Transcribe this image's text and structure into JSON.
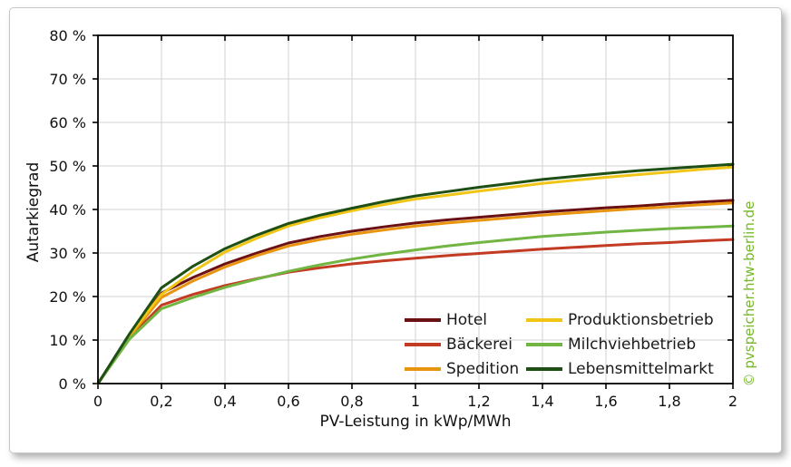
{
  "chart_data": {
    "type": "line",
    "title": "",
    "xlabel": "PV-Leistung in kWp/MWh",
    "ylabel": "Autarkiegrad",
    "xlim": [
      0,
      2
    ],
    "ylim": [
      0,
      80
    ],
    "grid": true,
    "legend_position": "inside-bottom-right-two-columns",
    "x_ticks": [
      0,
      0.2,
      0.4,
      0.6,
      0.8,
      1,
      1.2,
      1.4,
      1.6,
      1.8,
      2
    ],
    "x_tick_labels": [
      "0",
      "0,2",
      "0,4",
      "0,6",
      "0,8",
      "1",
      "1,2",
      "1,4",
      "1,6",
      "1,8",
      "2"
    ],
    "y_ticks": [
      0,
      10,
      20,
      30,
      40,
      50,
      60,
      70,
      80
    ],
    "y_tick_labels": [
      "0 %",
      "10 %",
      "20 %",
      "30 %",
      "40 %",
      "50 %",
      "60 %",
      "70 %",
      "80 %"
    ],
    "x": [
      0,
      0.1,
      0.2,
      0.3,
      0.4,
      0.5,
      0.6,
      0.7,
      0.8,
      0.9,
      1.0,
      1.1,
      1.2,
      1.3,
      1.4,
      1.5,
      1.6,
      1.7,
      1.8,
      1.9,
      2.0
    ],
    "series": [
      {
        "name": "Hotel",
        "color": "#6b1113",
        "values": [
          0,
          11.0,
          20.8,
          24.4,
          27.5,
          30.0,
          32.3,
          33.8,
          35.0,
          36.0,
          36.9,
          37.6,
          38.2,
          38.8,
          39.4,
          39.9,
          40.4,
          40.8,
          41.3,
          41.7,
          42.1
        ]
      },
      {
        "name": "Bäckerei",
        "color": "#c23b22",
        "values": [
          0,
          10.5,
          18.0,
          20.5,
          22.5,
          24.1,
          25.6,
          26.6,
          27.5,
          28.2,
          28.8,
          29.4,
          29.9,
          30.4,
          30.9,
          31.3,
          31.7,
          32.1,
          32.4,
          32.8,
          33.1
        ]
      },
      {
        "name": "Spedition",
        "color": "#e8940f",
        "values": [
          0,
          10.8,
          19.8,
          23.6,
          26.8,
          29.4,
          31.6,
          33.1,
          34.3,
          35.3,
          36.2,
          36.9,
          37.5,
          38.1,
          38.7,
          39.2,
          39.7,
          40.2,
          40.6,
          41.1,
          41.5
        ]
      },
      {
        "name": "Produktionsbetrieb",
        "color": "#f0c515",
        "values": [
          0,
          11.2,
          20.5,
          25.8,
          30.2,
          33.4,
          36.2,
          38.1,
          39.7,
          41.1,
          42.4,
          43.3,
          44.2,
          45.1,
          46.0,
          46.7,
          47.4,
          48.0,
          48.6,
          49.2,
          49.7
        ]
      },
      {
        "name": "Milchviehbetrieb",
        "color": "#71b542",
        "values": [
          0,
          10.3,
          17.2,
          19.8,
          22.1,
          24.0,
          25.8,
          27.3,
          28.6,
          29.7,
          30.7,
          31.6,
          32.4,
          33.1,
          33.8,
          34.3,
          34.8,
          35.2,
          35.6,
          35.9,
          36.2
        ]
      },
      {
        "name": "Lebensmittelmarkt",
        "color": "#1e4f15",
        "values": [
          0,
          11.5,
          22.0,
          27.0,
          31.0,
          34.1,
          36.8,
          38.7,
          40.3,
          41.8,
          43.1,
          44.1,
          45.1,
          46.0,
          46.9,
          47.6,
          48.3,
          48.9,
          49.4,
          49.9,
          50.4
        ]
      }
    ],
    "watermark": "© pvspeicher.htw-berlin.de",
    "watermark_color": "#76b82a",
    "gridline_color": "#d9d9d9",
    "axis_color": "#000000"
  }
}
